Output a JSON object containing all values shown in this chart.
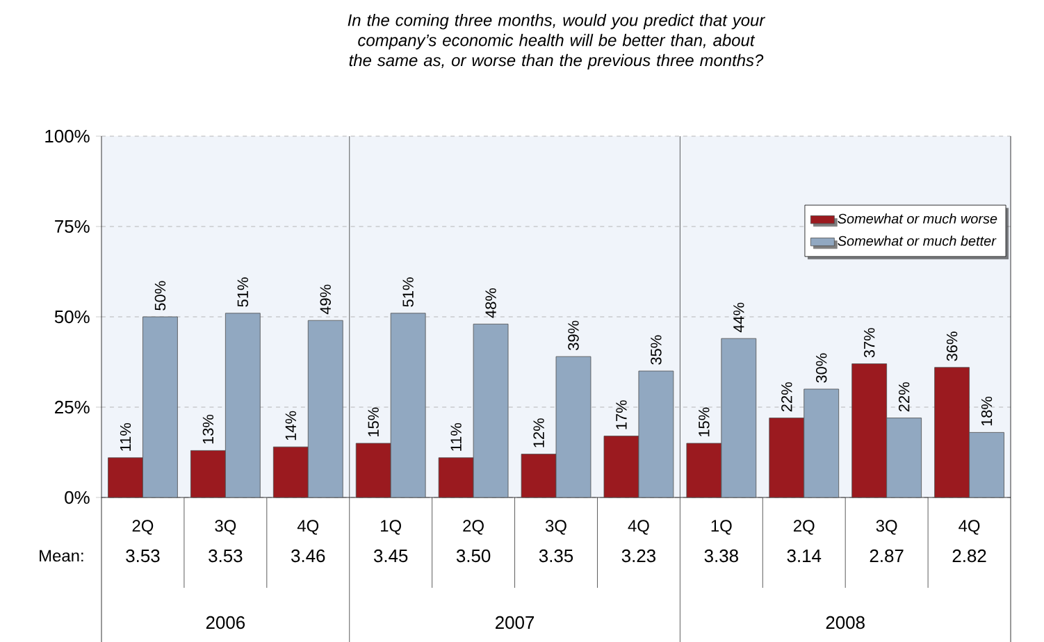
{
  "chart_data": {
    "type": "bar",
    "title": "In the coming three months, would you predict that your company’s economic health will be better than, about the same as, or worse than the previous three months?",
    "categories": [
      "2Q",
      "3Q",
      "4Q",
      "1Q",
      "2Q",
      "3Q",
      "4Q",
      "1Q",
      "2Q",
      "3Q",
      "4Q"
    ],
    "series": [
      {
        "name": "Somewhat or much worse",
        "color": "#9b1a1f",
        "values": [
          11,
          13,
          14,
          15,
          11,
          12,
          17,
          15,
          22,
          37,
          36
        ],
        "value_labels": [
          "11%",
          "13%",
          "14%",
          "15%",
          "11%",
          "12%",
          "17%",
          "15%",
          "22%",
          "37%",
          "36%"
        ]
      },
      {
        "name": "Somewhat or much better",
        "color": "#91a8c1",
        "values": [
          50,
          51,
          49,
          51,
          48,
          39,
          35,
          44,
          30,
          22,
          18
        ],
        "value_labels": [
          "50%",
          "51%",
          "49%",
          "51%",
          "48%",
          "39%",
          "35%",
          "44%",
          "30%",
          "22%",
          "18%"
        ]
      }
    ],
    "ylim": [
      0,
      100
    ],
    "yticks": [
      {
        "value": 0,
        "label": "0%"
      },
      {
        "value": 25,
        "label": "25%"
      },
      {
        "value": 50,
        "label": "50%"
      },
      {
        "value": 75,
        "label": "75%"
      },
      {
        "value": 100,
        "label": "100%"
      }
    ],
    "grid": "y",
    "legend": "top right",
    "annotations": [
      "Mean:",
      "3.53",
      "3.53",
      "3.46",
      "3.45",
      "3.50",
      "3.35",
      "3.23",
      "3.38",
      "3.14",
      "2.87",
      "2.82",
      "2006",
      "2007",
      "2008"
    ]
  }
}
